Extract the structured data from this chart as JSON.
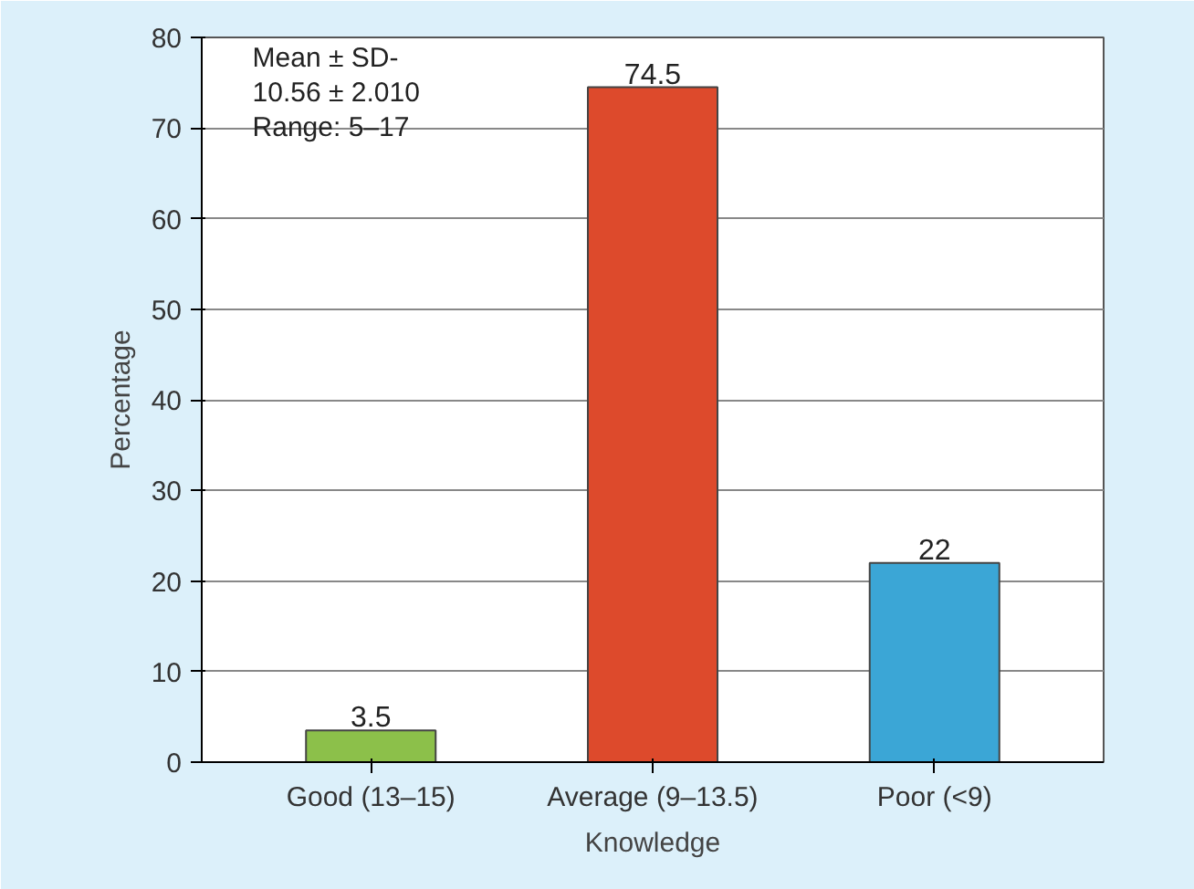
{
  "chart_data": {
    "type": "bar",
    "xlabel": "Knowledge",
    "ylabel": "Percentage",
    "categories": [
      "Good (13–15)",
      "Average (9–13.5)",
      "Poor (<9)"
    ],
    "values": [
      3.5,
      74.5,
      22
    ],
    "colors": [
      "#8cc04a",
      "#dd4a2c",
      "#3ba6d6"
    ],
    "ylim": [
      0,
      80
    ],
    "yticks": [
      0,
      10,
      20,
      30,
      40,
      50,
      60,
      70,
      80
    ],
    "grid": "y",
    "data_labels": true,
    "annotations": [
      "Mean ± SD-",
      "10.56 ± 2.010",
      "Range: 5–17"
    ]
  }
}
